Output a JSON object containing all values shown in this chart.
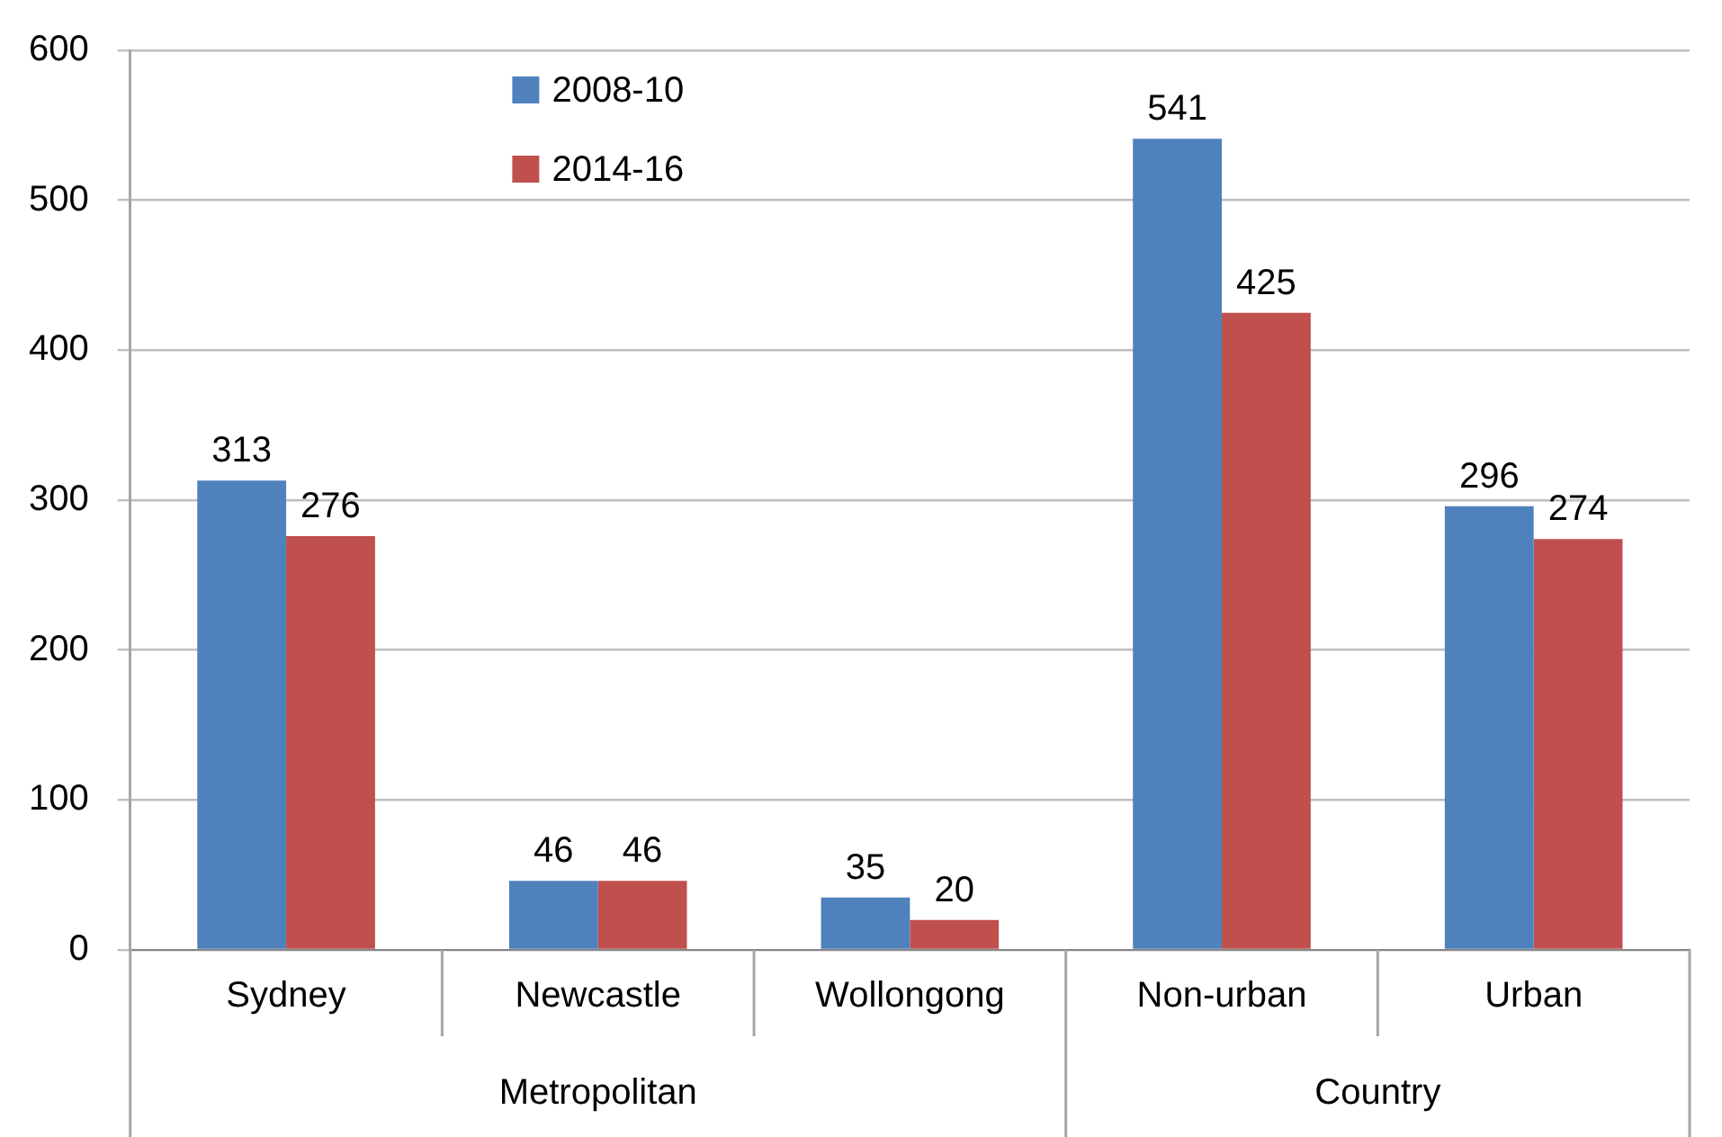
{
  "chart_data": {
    "type": "bar",
    "categories": [
      "Sydney",
      "Newcastle",
      "Wollongong",
      "Non-urban",
      "Urban"
    ],
    "series": [
      {
        "name": "2008-10",
        "color": "#4f81bd",
        "values": [
          313,
          46,
          35,
          541,
          296
        ]
      },
      {
        "name": "2014-16",
        "color": "#c0504d",
        "values": [
          276,
          46,
          20,
          425,
          274
        ]
      }
    ],
    "ylim": [
      0,
      600
    ],
    "yticks": [
      0,
      100,
      200,
      300,
      400,
      500,
      600
    ],
    "grid": "y",
    "legend": "top left",
    "data_labels": true,
    "annotations": [
      "Metropolitan",
      "Country"
    ]
  }
}
